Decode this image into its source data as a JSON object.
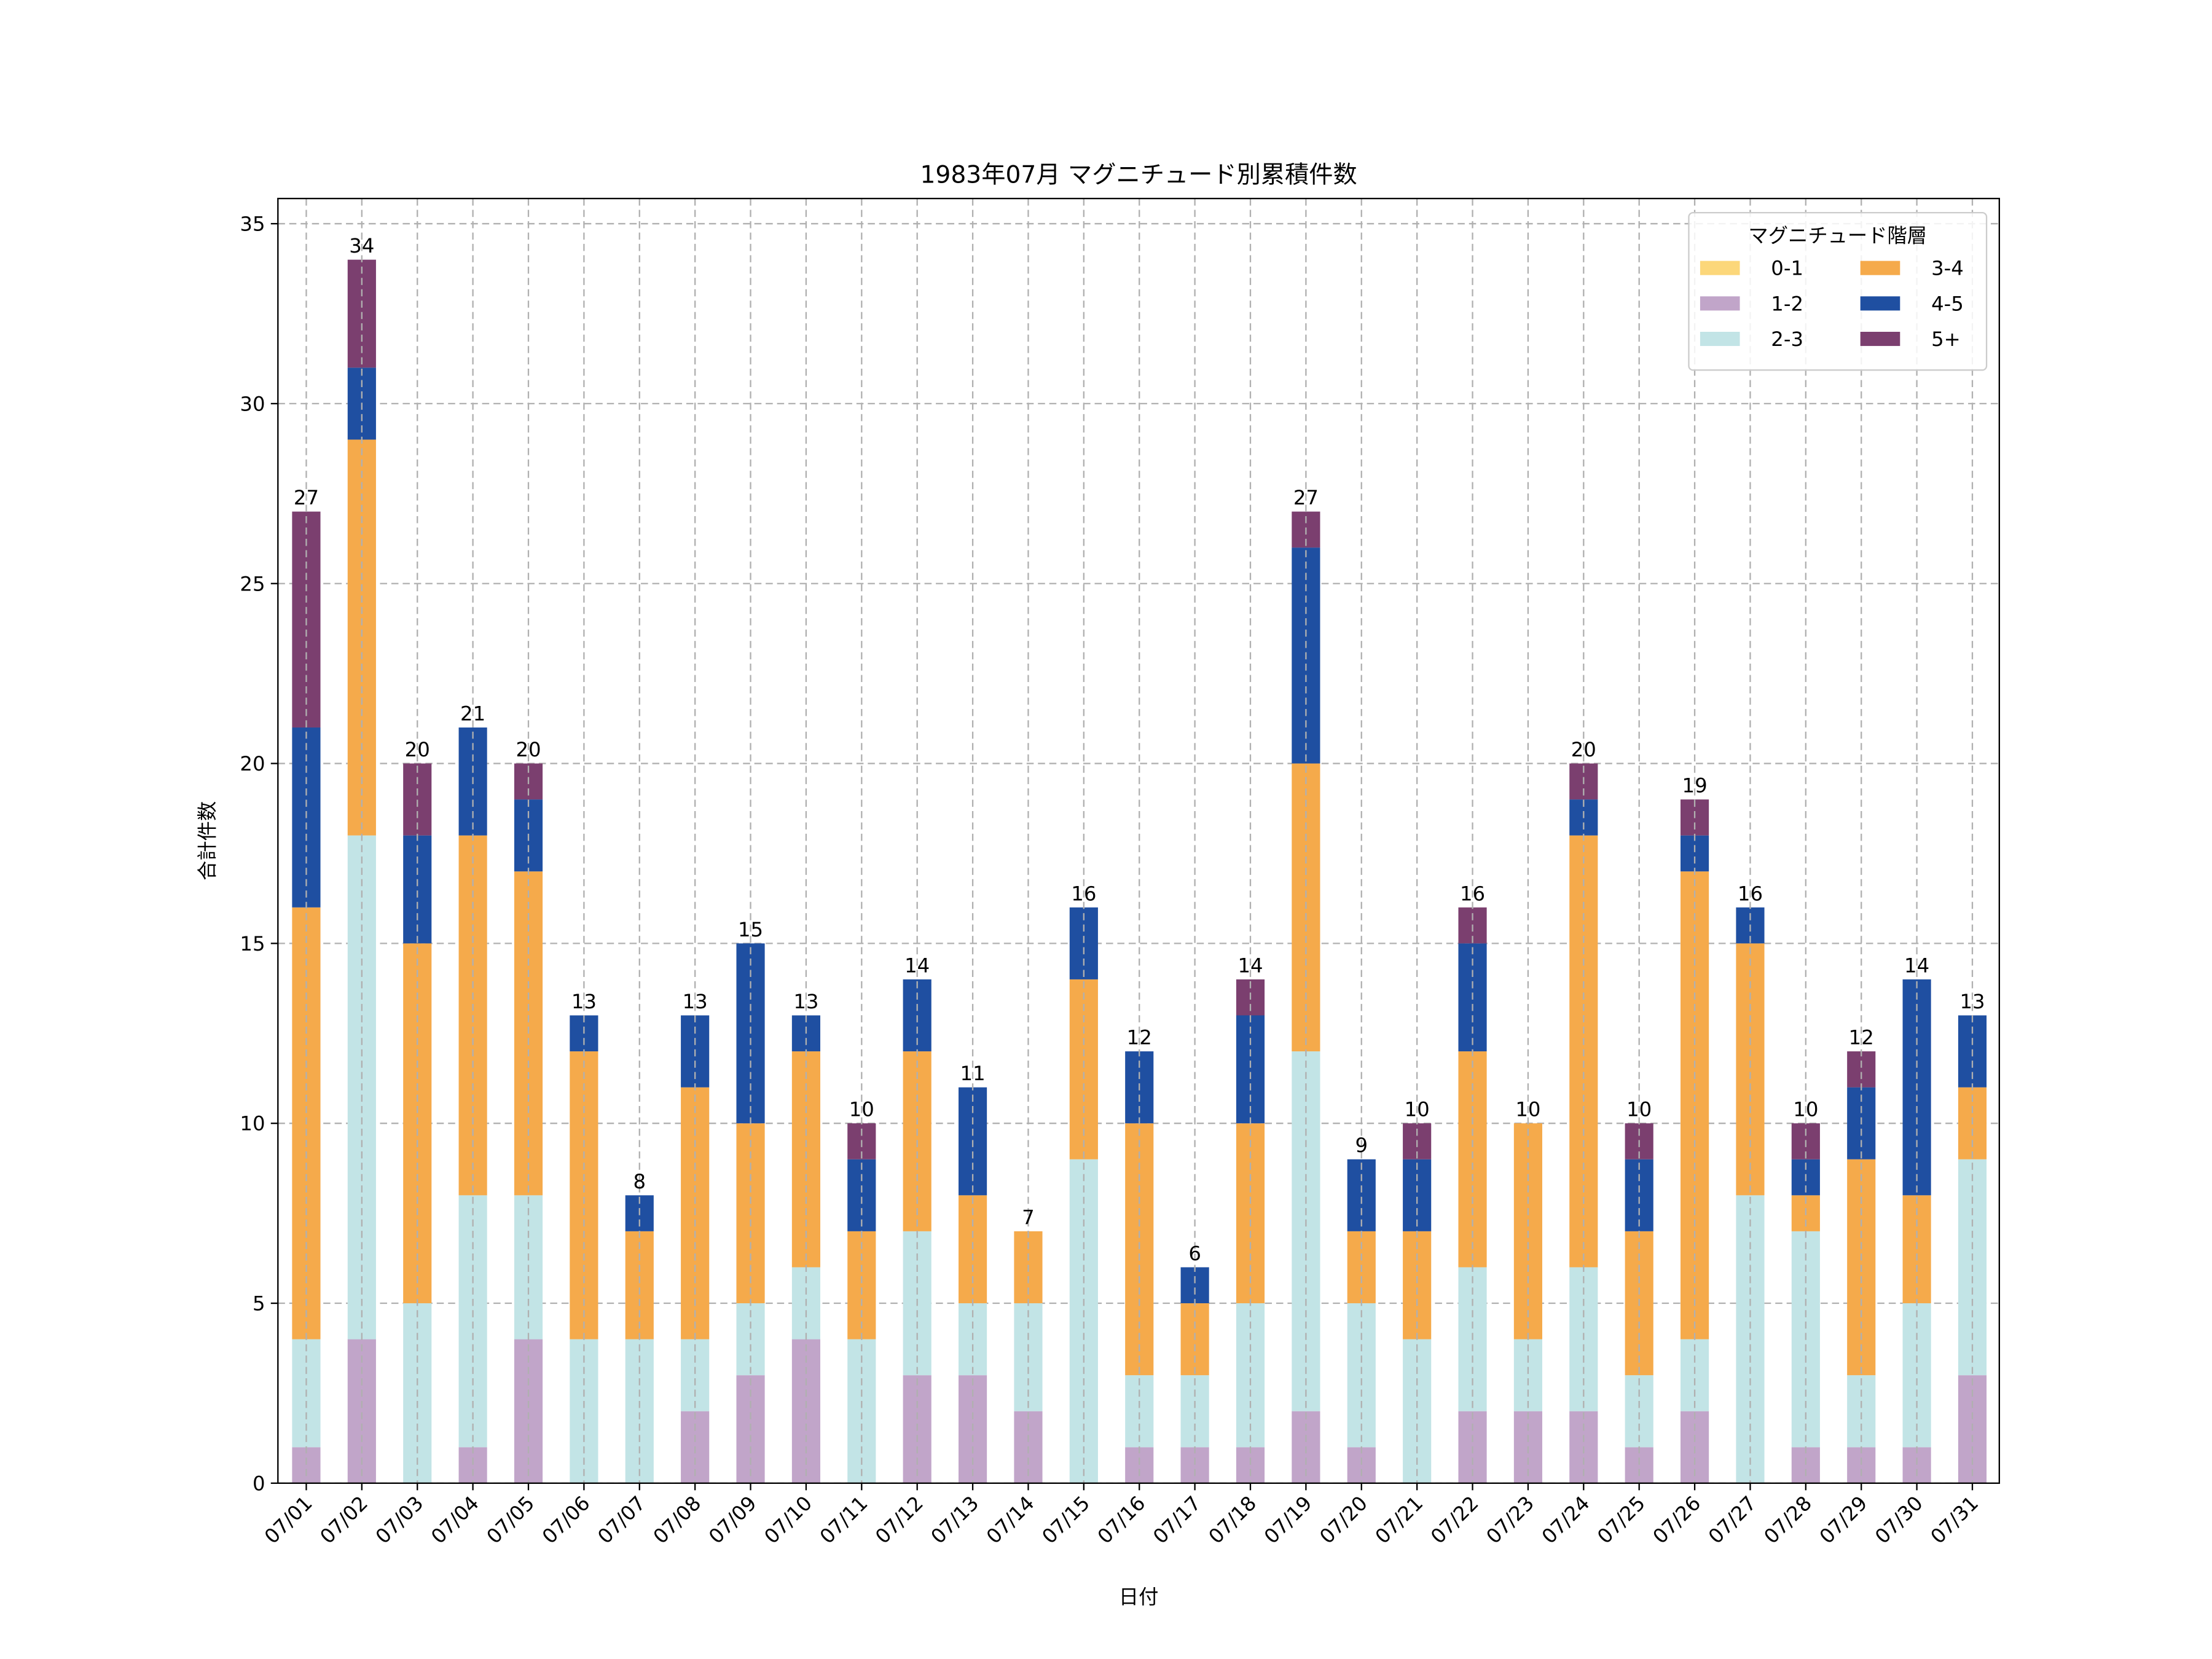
{
  "chart_data": {
    "type": "bar",
    "stacked": true,
    "title": "1983年07月 マグニチュード別累積件数",
    "xlabel": "日付",
    "ylabel": "合計件数",
    "ylim": [
      0,
      35.7
    ],
    "yticks": [
      0,
      5,
      10,
      15,
      20,
      25,
      30,
      35
    ],
    "grid": true,
    "legend": {
      "title": "マグニチュード階層",
      "placement": "top-right",
      "columns": 2
    },
    "categories": [
      "07/01",
      "07/02",
      "07/03",
      "07/04",
      "07/05",
      "07/06",
      "07/07",
      "07/08",
      "07/09",
      "07/10",
      "07/11",
      "07/12",
      "07/13",
      "07/14",
      "07/15",
      "07/16",
      "07/17",
      "07/18",
      "07/19",
      "07/20",
      "07/21",
      "07/22",
      "07/23",
      "07/24",
      "07/25",
      "07/26",
      "07/27",
      "07/28",
      "07/29",
      "07/30",
      "07/31"
    ],
    "series": [
      {
        "name": "0-1",
        "color": "#fcd77a",
        "values": [
          0,
          0,
          0,
          0,
          0,
          0,
          0,
          0,
          0,
          0,
          0,
          0,
          0,
          0,
          0,
          0,
          0,
          0,
          0,
          0,
          0,
          0,
          0,
          0,
          0,
          0,
          0,
          0,
          0,
          0,
          0
        ]
      },
      {
        "name": "1-2",
        "color": "#c1a5c9",
        "values": [
          1,
          4,
          0,
          1,
          4,
          0,
          0,
          2,
          3,
          4,
          0,
          3,
          3,
          2,
          0,
          1,
          1,
          1,
          2,
          1,
          0,
          2,
          2,
          2,
          1,
          2,
          0,
          1,
          1,
          1,
          3
        ]
      },
      {
        "name": "2-3",
        "color": "#c2e4e6",
        "values": [
          3,
          14,
          5,
          7,
          4,
          4,
          4,
          2,
          2,
          2,
          4,
          4,
          2,
          3,
          9,
          2,
          2,
          4,
          10,
          4,
          4,
          4,
          2,
          4,
          2,
          2,
          8,
          6,
          2,
          4,
          6
        ]
      },
      {
        "name": "3-4",
        "color": "#f5aa4b",
        "values": [
          12,
          11,
          10,
          10,
          9,
          8,
          3,
          7,
          5,
          6,
          3,
          5,
          3,
          2,
          5,
          7,
          2,
          5,
          8,
          2,
          3,
          6,
          6,
          12,
          4,
          13,
          7,
          1,
          6,
          3,
          2
        ]
      },
      {
        "name": "4-5",
        "color": "#1f4fa1",
        "values": [
          5,
          2,
          3,
          3,
          2,
          1,
          1,
          2,
          5,
          1,
          2,
          2,
          3,
          0,
          2,
          2,
          1,
          3,
          6,
          2,
          2,
          3,
          0,
          1,
          2,
          1,
          1,
          1,
          2,
          6,
          2
        ]
      },
      {
        "name": "5+",
        "color": "#7b3f6f",
        "values": [
          6,
          3,
          2,
          0,
          1,
          0,
          0,
          0,
          0,
          0,
          1,
          0,
          0,
          0,
          0,
          0,
          0,
          1,
          1,
          0,
          1,
          1,
          0,
          1,
          1,
          1,
          0,
          1,
          1,
          0,
          0
        ]
      }
    ],
    "totals": [
      27,
      34,
      20,
      21,
      20,
      13,
      8,
      13,
      15,
      13,
      10,
      14,
      11,
      7,
      16,
      12,
      6,
      14,
      27,
      9,
      10,
      16,
      10,
      20,
      10,
      19,
      16,
      10,
      12,
      14,
      13
    ]
  }
}
